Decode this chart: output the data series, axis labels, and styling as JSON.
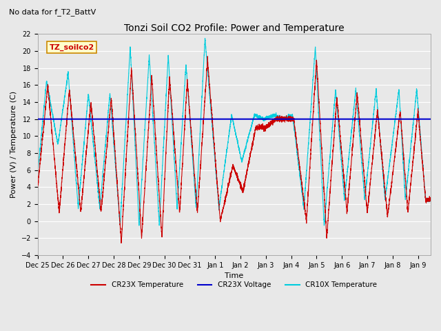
{
  "title": "Tonzi Soil CO2 Profile: Power and Temperature",
  "subtitle": "No data for f_T2_BattV",
  "ylabel": "Power (V) / Temperature (C)",
  "xlabel": "Time",
  "ylim": [
    -4,
    22
  ],
  "yticks": [
    -4,
    -2,
    0,
    2,
    4,
    6,
    8,
    10,
    12,
    14,
    16,
    18,
    20,
    22
  ],
  "legend_labels": [
    "CR23X Temperature",
    "CR23X Voltage",
    "CR10X Temperature"
  ],
  "box_label": "TZ_soilco2",
  "box_facecolor": "#ffffcc",
  "box_edgecolor": "#cc8800",
  "box_textcolor": "#cc0000",
  "background_color": "#e8e8e8",
  "plot_background": "#e8e8e8",
  "grid_color": "#ffffff",
  "voltage_value": 12.0,
  "voltage_color": "#0000cc",
  "cr23x_color": "#cc0000",
  "cr10x_color": "#00ccdd",
  "title_fontsize": 10,
  "axis_fontsize": 8,
  "tick_fontsize": 7,
  "subtitle_fontsize": 8,
  "tick_positions": [
    0,
    1,
    2,
    3,
    4,
    5,
    6,
    7,
    8,
    9,
    10,
    11,
    12,
    13,
    14,
    15
  ],
  "tick_labels": [
    "Dec 25",
    "Dec 26",
    "Dec 27",
    "Dec 28",
    "Dec 29",
    "Dec 30",
    "Dec 31",
    "Jan 1",
    "Jan 2",
    "Jan 3",
    "Jan 4",
    "Jan 5",
    "Jan 6",
    "Jan 7",
    "Jan 8",
    "Jan 9"
  ]
}
